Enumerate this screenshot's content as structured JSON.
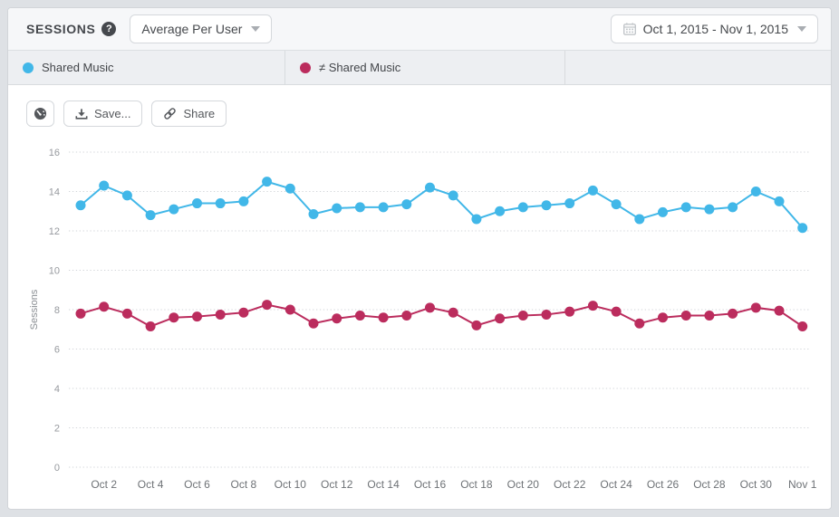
{
  "header": {
    "title": "SESSIONS",
    "metric_dropdown": {
      "value": "Average Per User"
    },
    "date_range": {
      "value": "Oct 1, 2015 - Nov 1, 2015"
    }
  },
  "legend": {
    "items": [
      {
        "label": "Shared Music",
        "color": "#41b7e8"
      },
      {
        "label": "≠ Shared Music",
        "color": "#bb2c5d"
      }
    ]
  },
  "toolbar": {
    "save_label": "Save...",
    "share_label": "Share"
  },
  "icons": {
    "help": "question-circle",
    "help_glyph": "?",
    "metric_caret": "caret-down",
    "calendar": "calendar",
    "date_caret": "caret-down",
    "dashboard": "gauge",
    "save": "download",
    "share": "link"
  },
  "chart_data": {
    "type": "line",
    "title": "",
    "xlabel": "",
    "ylabel": "Sessions",
    "ylim": [
      0,
      16
    ],
    "yticks": [
      0,
      2,
      4,
      6,
      8,
      10,
      12,
      14,
      16
    ],
    "grid": "horizontal-dotted",
    "legend_position": "top",
    "x": [
      "Oct 1",
      "Oct 2",
      "Oct 3",
      "Oct 4",
      "Oct 5",
      "Oct 6",
      "Oct 7",
      "Oct 8",
      "Oct 9",
      "Oct 10",
      "Oct 11",
      "Oct 12",
      "Oct 13",
      "Oct 14",
      "Oct 15",
      "Oct 16",
      "Oct 17",
      "Oct 18",
      "Oct 19",
      "Oct 20",
      "Oct 21",
      "Oct 22",
      "Oct 23",
      "Oct 24",
      "Oct 25",
      "Oct 26",
      "Oct 27",
      "Oct 28",
      "Oct 29",
      "Oct 30",
      "Oct 31",
      "Nov 1"
    ],
    "x_tick_labels": [
      "Oct 2",
      "Oct 4",
      "Oct 6",
      "Oct 8",
      "Oct 10",
      "Oct 12",
      "Oct 14",
      "Oct 16",
      "Oct 18",
      "Oct 20",
      "Oct 22",
      "Oct 24",
      "Oct 26",
      "Oct 28",
      "Oct 30",
      "Nov 1"
    ],
    "series": [
      {
        "name": "Shared Music",
        "color": "#41b7e8",
        "values": [
          13.3,
          14.3,
          13.8,
          12.8,
          13.1,
          13.4,
          13.4,
          13.5,
          14.5,
          14.15,
          12.85,
          13.15,
          13.2,
          13.2,
          13.35,
          14.2,
          13.8,
          12.6,
          13.0,
          13.2,
          13.3,
          13.4,
          14.05,
          13.35,
          12.6,
          12.95,
          13.2,
          13.1,
          13.2,
          14.0,
          13.5,
          12.15
        ]
      },
      {
        "name": "≠ Shared Music",
        "color": "#bb2c5d",
        "values": [
          7.8,
          8.15,
          7.8,
          7.15,
          7.6,
          7.65,
          7.75,
          7.85,
          8.25,
          8.0,
          7.3,
          7.55,
          7.7,
          7.6,
          7.7,
          8.1,
          7.85,
          7.2,
          7.55,
          7.7,
          7.75,
          7.9,
          8.2,
          7.9,
          7.3,
          7.6,
          7.7,
          7.7,
          7.8,
          8.1,
          7.95,
          7.15
        ]
      }
    ]
  }
}
